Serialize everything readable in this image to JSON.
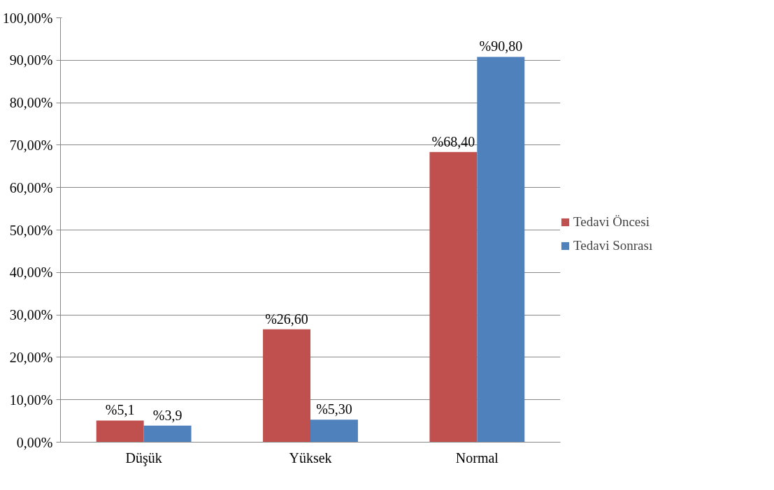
{
  "chart_data": {
    "type": "bar",
    "categories": [
      "Düşük",
      "Yüksek",
      "Normal"
    ],
    "series": [
      {
        "name": "Tedavi Öncesi",
        "color": "#c0504d",
        "values": [
          5.1,
          26.6,
          68.4
        ],
        "value_labels": [
          "%5,1",
          "%26,60",
          "%68,40"
        ]
      },
      {
        "name": "Tedavi Sonrası",
        "color": "#4f81bd",
        "values": [
          3.9,
          5.3,
          90.8
        ],
        "value_labels": [
          "%3,9",
          "%5,30",
          "%90,80"
        ]
      }
    ],
    "ylim": [
      0,
      100
    ],
    "yticks": [
      {
        "value": 0,
        "label": "0,00%"
      },
      {
        "value": 10,
        "label": "10,00%"
      },
      {
        "value": 20,
        "label": "20,00%"
      },
      {
        "value": 30,
        "label": "30,00%"
      },
      {
        "value": 40,
        "label": "40,00%"
      },
      {
        "value": 50,
        "label": "50,00%"
      },
      {
        "value": 60,
        "label": "60,00%"
      },
      {
        "value": 70,
        "label": "70,00%"
      },
      {
        "value": 80,
        "label": "80,00%"
      },
      {
        "value": 90,
        "label": "90,00%"
      },
      {
        "value": 100,
        "label": "100,00%"
      }
    ],
    "grid": "y",
    "legend": "right"
  }
}
